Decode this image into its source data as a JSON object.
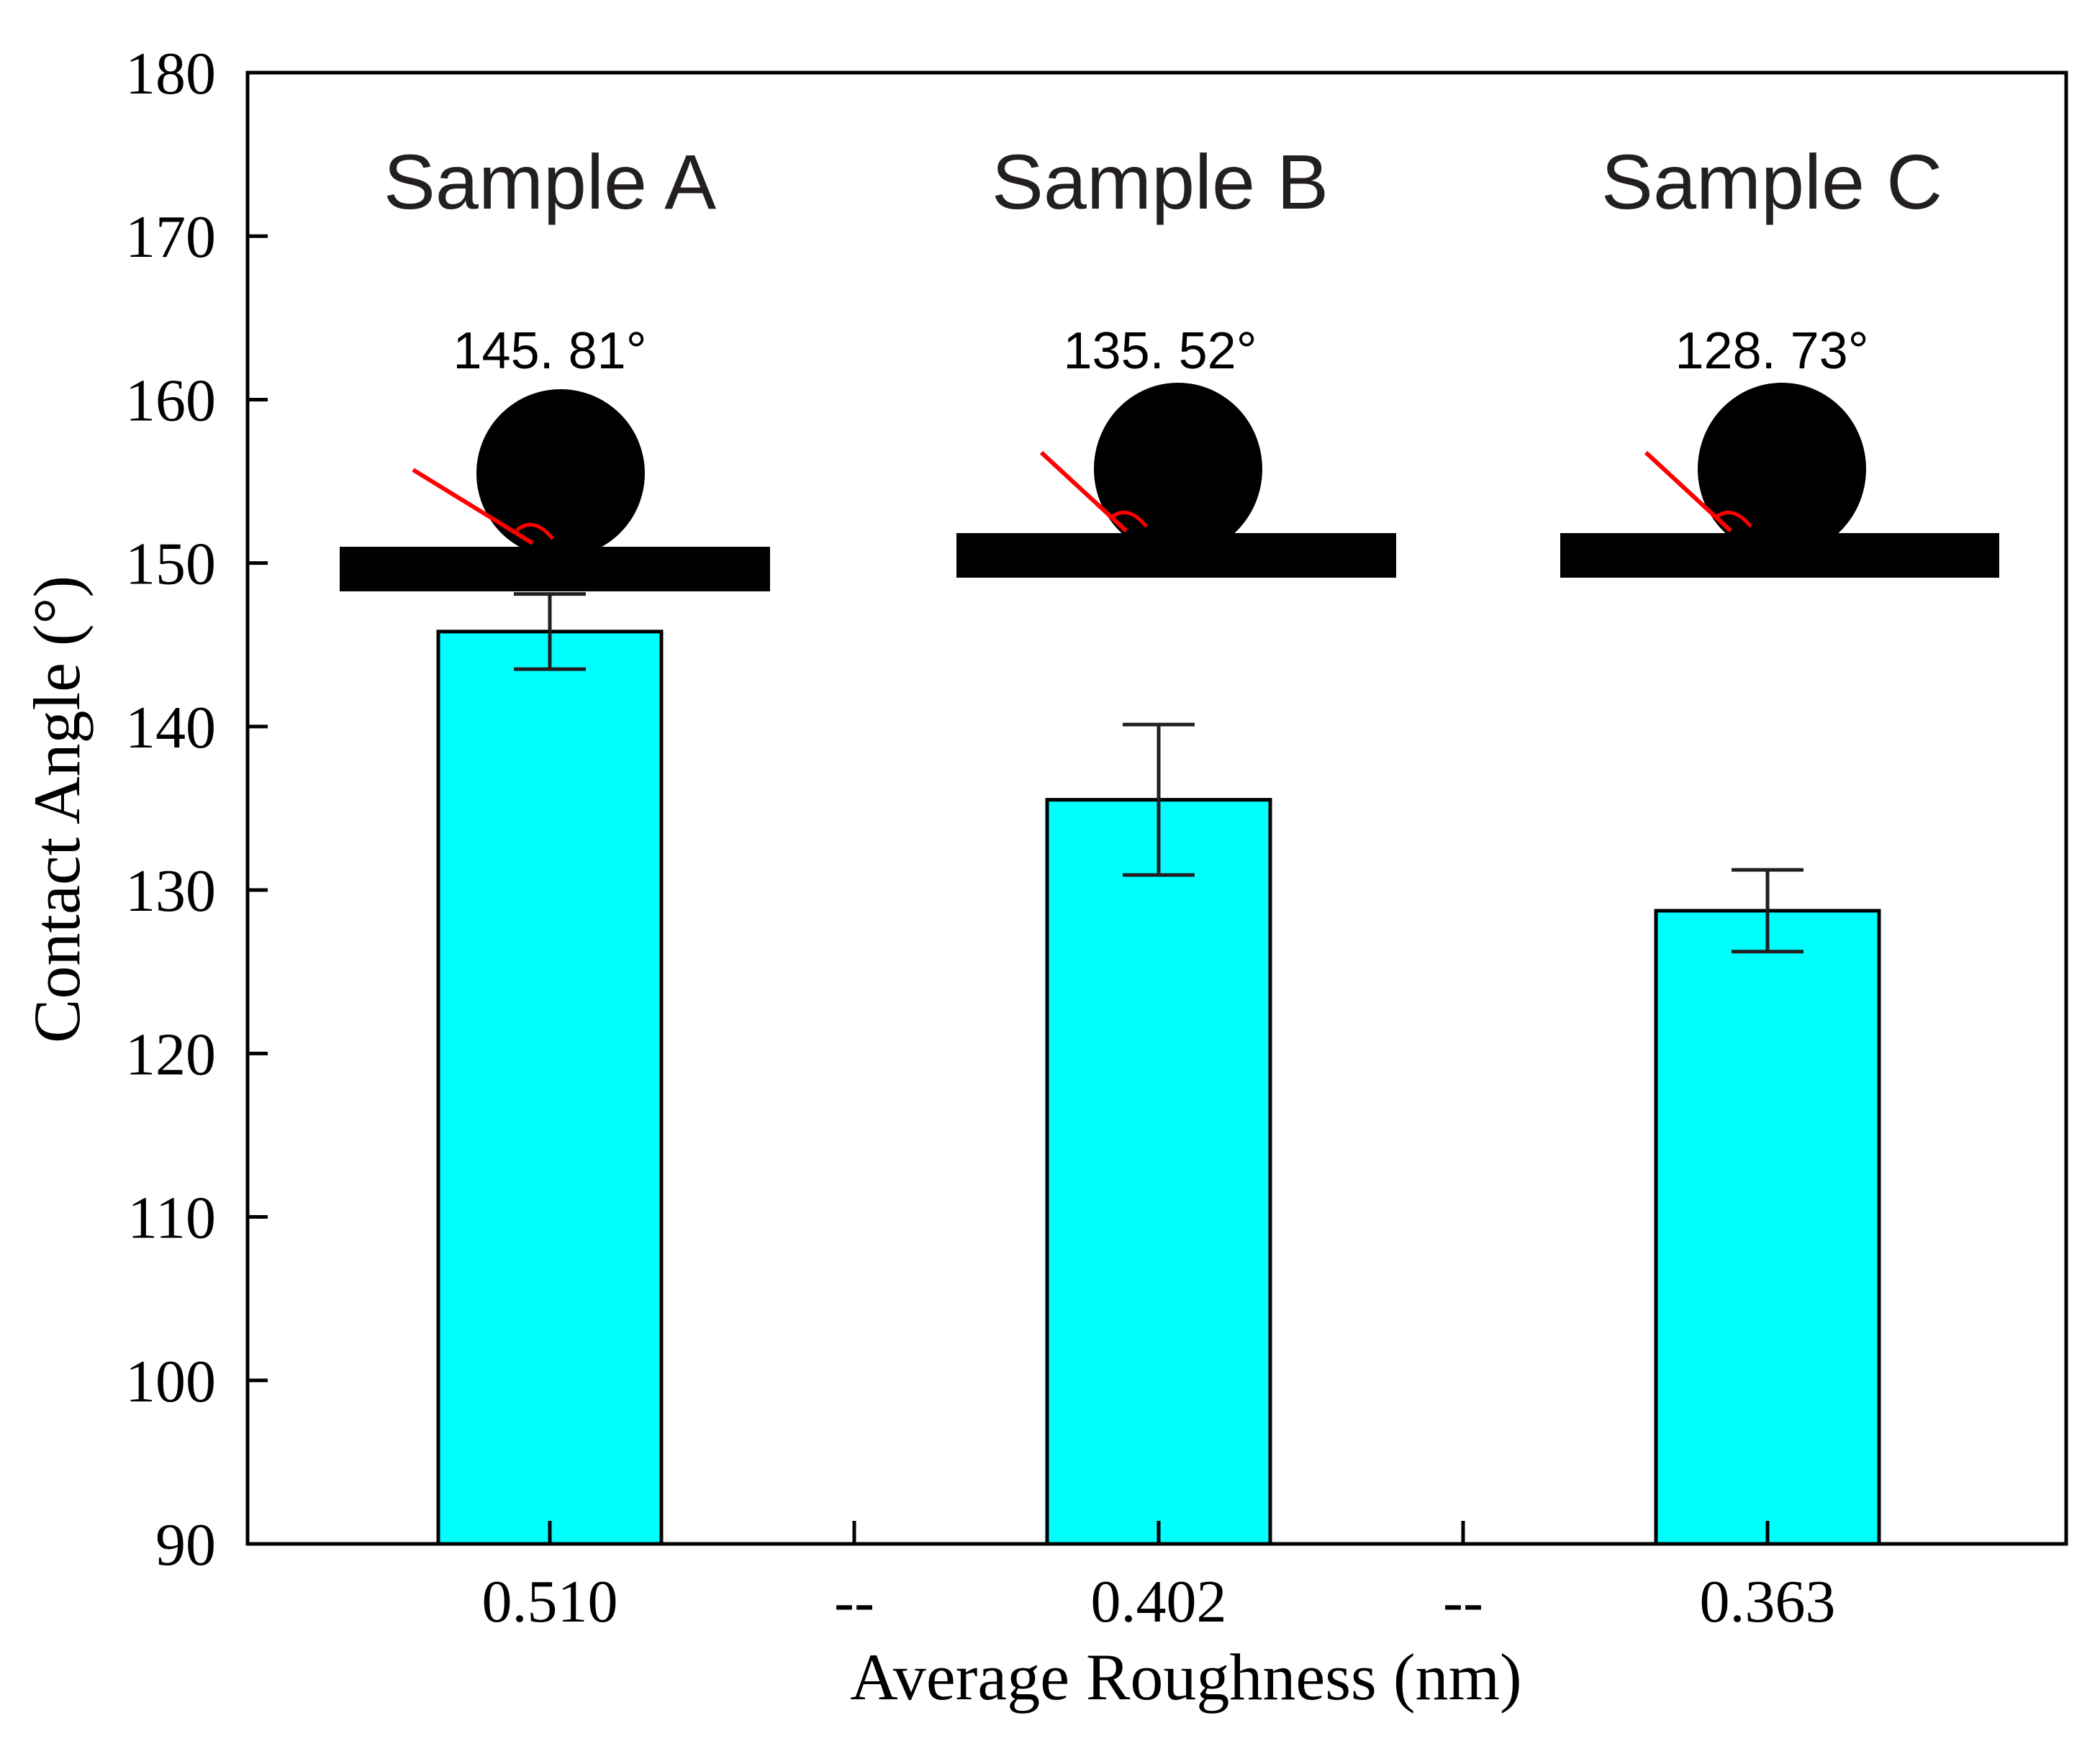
{
  "chart_data": {
    "type": "bar",
    "categories": [
      "0.510",
      "--",
      "0.402",
      "--",
      "0.363"
    ],
    "series": [
      {
        "values": [
          145.81,
          null,
          135.52,
          null,
          128.73
        ],
        "errors": [
          2.3,
          null,
          4.6,
          null,
          2.5
        ]
      }
    ],
    "xlabel": "Average Roughness (nm)",
    "ylabel": "Contact Angle (°)",
    "ylim": [
      90,
      180
    ],
    "yticks": [
      90,
      100,
      110,
      120,
      130,
      140,
      150,
      160,
      170,
      180
    ],
    "grid": false,
    "bar_color": "#00ffff",
    "edge_color": "#000000",
    "error_color": "#231f20",
    "insets": [
      {
        "sample": "Sample A",
        "angle_label": "145. 81°"
      },
      {
        "sample": "Sample B",
        "angle_label": "135. 52°"
      },
      {
        "sample": "Sample C",
        "angle_label": "128. 73°"
      }
    ],
    "inset_line_color": "#ff0000"
  }
}
